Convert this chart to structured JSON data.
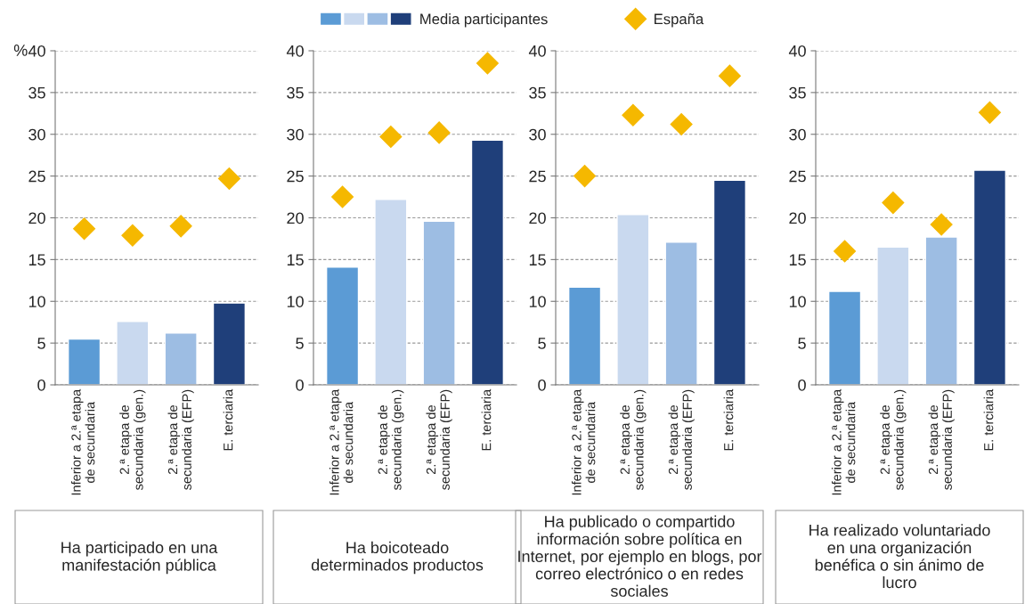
{
  "chart_data": [
    {
      "type": "bar",
      "ylabel": "%",
      "xlabel": "Ha participado en una\nmanifestación pública",
      "categories": [
        "Inferior a 2.ª etapa\nde secundaria",
        "2.ª etapa de\nsecundaria (gen.)",
        "2.ª etapa de\nsecundaria (EFP)",
        "E. terciaria"
      ],
      "ylim": [
        0,
        40
      ],
      "yticks": [
        0,
        5,
        10,
        15,
        20,
        25,
        30,
        35,
        40
      ],
      "grid": "y",
      "legend": "top",
      "series": [
        {
          "name": "Media participantes",
          "colors": [
            "#5b9bd5",
            "#c9d9ef",
            "#9dbde3",
            "#1f3f7a"
          ],
          "values": [
            5.5,
            7.6,
            6.2,
            9.8
          ]
        },
        {
          "name": "España",
          "type": "scatter",
          "marker": "diamond",
          "color": "#f5b800",
          "x": [
            "Inferior a 2.ª etapa\nde secundaria",
            "2.ª etapa de\nsecundaria (gen.)",
            "2.ª etapa de\nsecundaria (EFP)",
            "E. terciaria"
          ],
          "values": [
            18.7,
            17.9,
            19.0,
            24.7
          ]
        }
      ]
    },
    {
      "type": "bar",
      "xlabel": "Ha boicoteado\ndeterminados productos",
      "categories": [
        "Inferior a 2.ª etapa\nde secundaria",
        "2.ª etapa de\nsecundaria (gen.)",
        "2.ª etapa de\nsecundaria (EFP)",
        "E. terciaria"
      ],
      "ylim": [
        0,
        40
      ],
      "yticks": [
        0,
        5,
        10,
        15,
        20,
        25,
        30,
        35,
        40
      ],
      "grid": "y",
      "series": [
        {
          "colors": [
            "#5b9bd5",
            "#c9d9ef",
            "#9dbde3",
            "#1f3f7a"
          ],
          "values": [
            14.1,
            22.2,
            19.6,
            29.3
          ]
        },
        {
          "type": "scatter",
          "marker": "diamond",
          "color": "#f5b800",
          "x": [
            "Inferior a 2.ª etapa\nde secundaria",
            "2.ª etapa de\nsecundaria (gen.)",
            "2.ª etapa de\nsecundaria (EFP)",
            "E. terciaria"
          ],
          "values": [
            22.5,
            29.7,
            30.2,
            38.5
          ]
        }
      ]
    },
    {
      "type": "bar",
      "xlabel": "Ha publicado o compartido\ninformación sobre política en\nInternet, por ejemplo en blogs, por\ncorreo electrónico o en redes\nsociales",
      "categories": [
        "Inferior a 2.ª etapa\nde secundaria",
        "2.ª etapa de\nsecundaria (gen.)",
        "2.ª etapa de\nsecundaria (EFP)",
        "E. terciaria"
      ],
      "ylim": [
        0,
        40
      ],
      "yticks": [
        0,
        5,
        10,
        15,
        20,
        25,
        30,
        35,
        40
      ],
      "grid": "y",
      "series": [
        {
          "colors": [
            "#5b9bd5",
            "#c9d9ef",
            "#9dbde3",
            "#1f3f7a"
          ],
          "values": [
            11.7,
            20.4,
            17.1,
            24.5
          ]
        },
        {
          "type": "scatter",
          "marker": "diamond",
          "color": "#f5b800",
          "x": [
            "Inferior a 2.ª etapa\nde secundaria",
            "2.ª etapa de\nsecundaria (gen.)",
            "2.ª etapa de\nsecundaria (EFP)",
            "E. terciaria"
          ],
          "values": [
            25.0,
            32.3,
            31.2,
            37.0
          ]
        }
      ]
    },
    {
      "type": "bar",
      "xlabel": "Ha realizado voluntariado\nen una organización\nbenéfica o sin ánimo de\nlucro",
      "categories": [
        "Inferior a 2.ª etapa\nde secundaria",
        "2.ª etapa de\nsecundaria (gen.)",
        "2.ª etapa de\nsecundaria (EFP)",
        "E. terciaria"
      ],
      "ylim": [
        0,
        40
      ],
      "yticks": [
        0,
        5,
        10,
        15,
        20,
        25,
        30,
        35,
        40
      ],
      "grid": "y",
      "series": [
        {
          "colors": [
            "#5b9bd5",
            "#c9d9ef",
            "#9dbde3",
            "#1f3f7a"
          ],
          "values": [
            11.2,
            16.5,
            17.7,
            25.7
          ]
        },
        {
          "type": "scatter",
          "marker": "diamond",
          "color": "#f5b800",
          "x": [
            "Inferior a 2.ª etapa\nde secundaria",
            "2.ª etapa de\nsecundaria (gen.)",
            "2.ª etapa de\nsecundaria (EFP)",
            "E. terciaria"
          ],
          "values": [
            16.0,
            21.8,
            19.2,
            32.6
          ]
        }
      ]
    }
  ]
}
